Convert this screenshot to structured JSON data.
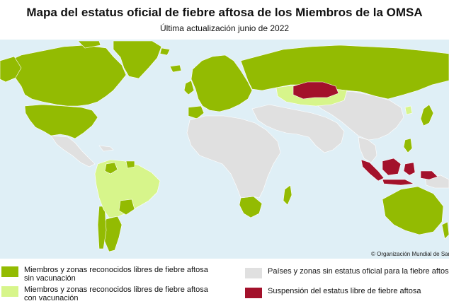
{
  "title": "Mapa del estatus oficial de fiebre aftosa de los Miembros de la OMSA",
  "subtitle": "Última actualización junio de 2022",
  "copyright": "© Organización Mundial de Sanidad Animal",
  "colors": {
    "ocean": "#dfeff6",
    "free_without_vaccination": "#93bb02",
    "free_with_vaccination": "#d7f58b",
    "no_status": "#e0e0e0",
    "suspended": "#a3112b",
    "border": "#ffffff"
  },
  "legend": [
    {
      "key": "free_without_vaccination",
      "label": "Miembros y zonas reconocidos libres de fiebre aftosa\nsin vacunación",
      "color": "#93bb02"
    },
    {
      "key": "free_with_vaccination",
      "label": "Miembros y zonas reconocidos libres de fiebre aftosa\ncon vacunación",
      "color": "#d7f58b"
    },
    {
      "key": "no_status",
      "label": "Países y zonas sin estatus oficial para la fiebre aftosa",
      "color": "#e0e0e0"
    },
    {
      "key": "suspended",
      "label": "Suspensión del estatus libre de fiebre aftosa",
      "color": "#a3112b"
    }
  ]
}
